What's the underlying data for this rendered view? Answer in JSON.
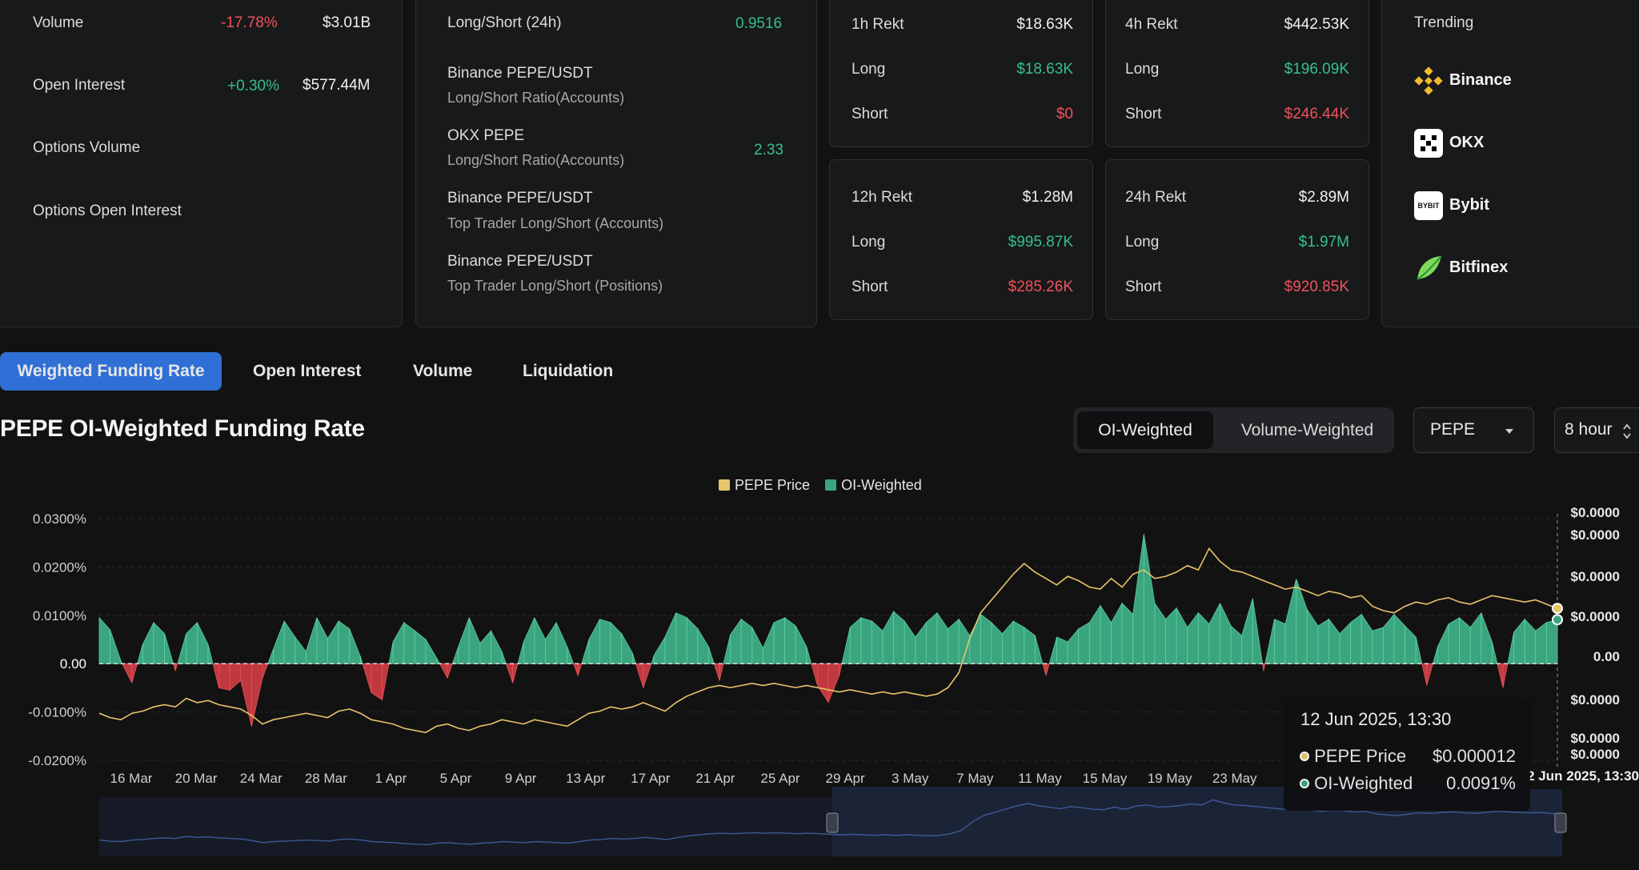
{
  "market_stats": {
    "rows": [
      {
        "label": "Volume",
        "change": "-17.78%",
        "value": "$3.01B"
      },
      {
        "label": "Open Interest",
        "change": "+0.30%",
        "value": "$577.44M"
      },
      {
        "label": "Options Volume"
      },
      {
        "label": "Options Open Interest"
      }
    ]
  },
  "long_short": {
    "title": "Long/Short (24h)",
    "title_value": "0.9516",
    "items": [
      {
        "label": "Binance PEPE/USDT",
        "sub": "Long/Short Ratio(Accounts)",
        "value": ""
      },
      {
        "label": "OKX PEPE",
        "sub": "Long/Short Ratio(Accounts)",
        "value": "2.33"
      },
      {
        "label": "Binance PEPE/USDT",
        "sub": "Top Trader Long/Short (Accounts)",
        "value": ""
      },
      {
        "label": "Binance PEPE/USDT",
        "sub": "Top Trader Long/Short (Positions)",
        "value": ""
      }
    ]
  },
  "rekt": {
    "h1": {
      "title": "1h Rekt",
      "total": "$18.63K",
      "long_label": "Long",
      "long": "$18.63K",
      "short_label": "Short",
      "short": "$0"
    },
    "h4": {
      "title": "4h Rekt",
      "total": "$442.53K",
      "long_label": "Long",
      "long": "$196.09K",
      "short_label": "Short",
      "short": "$246.44K"
    },
    "h12": {
      "title": "12h Rekt",
      "total": "$1.28M",
      "long_label": "Long",
      "long": "$995.87K",
      "short_label": "Short",
      "short": "$285.26K"
    },
    "h24": {
      "title": "24h Rekt",
      "total": "$2.89M",
      "long_label": "Long",
      "long": "$1.97M",
      "short_label": "Short",
      "short": "$920.85K"
    }
  },
  "trending": {
    "title": "Trending",
    "exchanges": [
      {
        "name": "Binance",
        "icon": "binance-logo"
      },
      {
        "name": "OKX",
        "icon": "okx-logo"
      },
      {
        "name": "Bybit",
        "icon": "bybit-logo",
        "logo_text": "BYBIT"
      },
      {
        "name": "Bitfinex",
        "icon": "bitfinex-logo"
      }
    ]
  },
  "tabs": [
    "Weighted Funding Rate",
    "Open Interest",
    "Volume",
    "Liquidation"
  ],
  "active_tab": 0,
  "chart_title": "PEPE OI-Weighted Funding Rate",
  "weighting": {
    "options": [
      "OI-Weighted",
      "Volume-Weighted"
    ],
    "selected": 0
  },
  "symbol_select": {
    "value": "PEPE",
    "icon": "caret-down-icon"
  },
  "interval_select": {
    "value": "8 hour",
    "icon": "updown-arrow-icon"
  },
  "chart_data": {
    "type": "area",
    "title": "PEPE OI-Weighted Funding Rate",
    "legend": [
      {
        "name": "PEPE Price",
        "color": "#e9c46a"
      },
      {
        "name": "OI-Weighted",
        "color": "#3aa57f"
      }
    ],
    "legend_position": "top-center",
    "y_left_ticks": [
      "0.0300%",
      "0.0200%",
      "0.0100%",
      "0.00",
      "-0.0100%",
      "-0.0200%"
    ],
    "y_left_range": [
      -0.02,
      0.03
    ],
    "y_right_ticks": [
      "$0.0000",
      "$0.0000",
      "$0.0000",
      "$0.0000",
      "0.00",
      "$0.0000",
      "$0.0000",
      "$0.0000"
    ],
    "x_ticks": [
      "16 Mar",
      "20 Mar",
      "24 Mar",
      "28 Mar",
      "1 Apr",
      "5 Apr",
      "9 Apr",
      "13 Apr",
      "17 Apr",
      "21 Apr",
      "25 Apr",
      "29 Apr",
      "3 May",
      "7 May",
      "11 May",
      "15 May",
      "19 May",
      "23 May"
    ],
    "x_range": [
      "2025-03-14",
      "2025-06-12"
    ],
    "grid": true,
    "series": [
      {
        "name": "OI-Weighted",
        "unit": "%",
        "values": [
          0.0095,
          0.007,
          0.0005,
          -0.004,
          0.004,
          0.0085,
          0.0062,
          -0.0015,
          0.0062,
          0.0085,
          0.004,
          -0.005,
          -0.0055,
          -0.0035,
          -0.013,
          -0.003,
          0.003,
          0.0088,
          0.0055,
          0.0025,
          0.0095,
          0.0052,
          0.0088,
          0.0072,
          0.0015,
          -0.006,
          -0.0075,
          0.0045,
          0.0085,
          0.0068,
          0.005,
          0.0012,
          -0.003,
          0.0035,
          0.0095,
          0.0042,
          0.0068,
          0.0025,
          -0.004,
          0.0045,
          0.0095,
          0.005,
          0.0085,
          0.0035,
          -0.0025,
          0.005,
          0.0092,
          0.0085,
          0.0062,
          0.0022,
          -0.005,
          0.0018,
          0.0055,
          0.0105,
          0.0095,
          0.0072,
          0.0035,
          -0.0035,
          0.006,
          0.0092,
          0.0075,
          0.0032,
          0.0085,
          0.0095,
          0.0078,
          0.0035,
          -0.0045,
          -0.008,
          -0.0025,
          0.0075,
          0.0095,
          0.0088,
          0.0068,
          0.0108,
          0.0088,
          0.0055,
          0.0085,
          0.0105,
          0.0072,
          0.0092,
          0.0058,
          0.0102,
          0.0085,
          0.0062,
          0.0088,
          0.0075,
          0.0058,
          -0.0025,
          0.0055,
          0.0045,
          0.0072,
          0.0085,
          0.012,
          0.0085,
          0.0125,
          0.0102,
          0.0268,
          0.0125,
          0.0092,
          0.0115,
          0.0075,
          0.0105,
          0.0082,
          0.0125,
          0.0078,
          0.0058,
          0.0135,
          -0.0015,
          0.0092,
          0.0082,
          0.0175,
          0.0112,
          0.0078,
          0.0092,
          0.0062,
          0.0085,
          0.0102,
          0.0068,
          0.0075,
          0.0102,
          0.0078,
          0.0055,
          -0.0045,
          0.0035,
          0.0082,
          0.0095,
          0.0075,
          0.0105,
          0.0045,
          -0.005,
          0.0065,
          0.0092,
          0.0068,
          0.0085,
          0.0091
        ],
        "color": "#3aa57f"
      },
      {
        "name": "PEPE Price",
        "unit": "$",
        "values": [
          7.1e-06,
          6.9e-06,
          6.8e-06,
          7.1e-06,
          7.2e-06,
          7.4e-06,
          7.5e-06,
          7.4e-06,
          7.8e-06,
          7.6e-06,
          7.7e-06,
          7.5e-06,
          7.4e-06,
          7.3e-06,
          7e-06,
          6.6e-06,
          6.8e-06,
          6.9e-06,
          7e-06,
          7.1e-06,
          7e-06,
          6.9e-06,
          7.2e-06,
          7.3e-06,
          7.1e-06,
          6.8e-06,
          6.7e-06,
          6.6e-06,
          6.4e-06,
          6.3e-06,
          6.2e-06,
          6.5e-06,
          6.6e-06,
          6.4e-06,
          6.3e-06,
          6.5e-06,
          6.6e-06,
          6.8e-06,
          6.7e-06,
          6.6e-06,
          6.8e-06,
          6.7e-06,
          6.6e-06,
          6.5e-06,
          6.8e-06,
          7.1e-06,
          7.2e-06,
          7.4e-06,
          7.3e-06,
          7.4e-06,
          7.6e-06,
          7.4e-06,
          7.2e-06,
          7.6e-06,
          7.9e-06,
          8.1e-06,
          8.3e-06,
          8.4e-06,
          8.3e-06,
          8.4e-06,
          8.5e-06,
          8.4e-06,
          8.5e-06,
          8.4e-06,
          8.3e-06,
          8.4e-06,
          8.3e-06,
          8.2e-06,
          8.1e-06,
          8.2e-06,
          8.1e-06,
          8e-06,
          8.1e-06,
          8e-06,
          8.1e-06,
          8e-06,
          7.9e-06,
          8e-06,
          8.3e-06,
          9e-06,
          1.06e-05,
          1.18e-05,
          1.24e-05,
          1.3e-05,
          1.36e-05,
          1.41e-05,
          1.37e-05,
          1.34e-05,
          1.31e-05,
          1.35e-05,
          1.33e-05,
          1.3e-05,
          1.29e-05,
          1.34e-05,
          1.3e-05,
          1.36e-05,
          1.38e-05,
          1.34e-05,
          1.35e-05,
          1.37e-05,
          1.4e-05,
          1.38e-05,
          1.48e-05,
          1.42e-05,
          1.38e-05,
          1.37e-05,
          1.35e-05,
          1.33e-05,
          1.31e-05,
          1.29e-05,
          1.3e-05,
          1.28e-05,
          1.26e-05,
          1.28e-05,
          1.27e-05,
          1.25e-05,
          1.26e-05,
          1.21e-05,
          1.19e-05,
          1.18e-05,
          1.21e-05,
          1.23e-05,
          1.22e-05,
          1.24e-05,
          1.25e-05,
          1.23e-05,
          1.22e-05,
          1.24e-05,
          1.26e-05,
          1.25e-05,
          1.24e-05,
          1.23e-05,
          1.24e-05,
          1.22e-05,
          1.2e-05
        ],
        "color": "#e9c46a"
      }
    ]
  },
  "tooltip": {
    "date": "12 Jun 2025, 13:30",
    "rows": [
      {
        "label": "PEPE Price",
        "value": "$0.000012",
        "color": "#e9c46a"
      },
      {
        "label": "OI-Weighted",
        "value": "0.0091%",
        "color": "#3aa57f"
      }
    ],
    "crosshair_label": "12 Jun 2025, 13:30"
  }
}
